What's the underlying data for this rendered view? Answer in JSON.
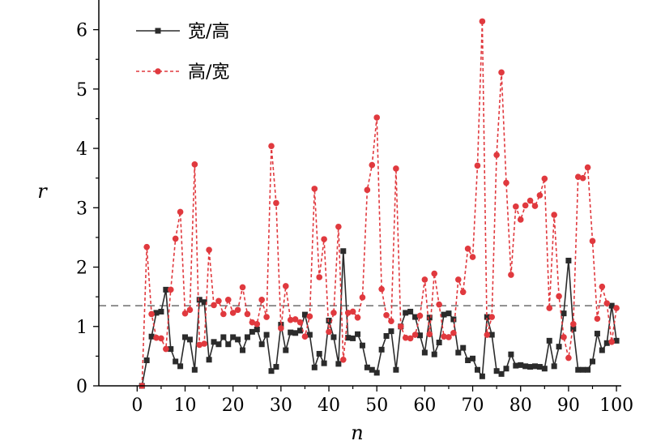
{
  "chart_data": {
    "type": "line",
    "title": "",
    "xlabel": "n",
    "ylabel": "r",
    "xlim": [
      -8,
      101
    ],
    "ylim": [
      0,
      6.5
    ],
    "x_ticks": [
      0,
      10,
      20,
      30,
      40,
      50,
      60,
      70,
      80,
      90,
      100
    ],
    "x_tick_labels": [
      "0",
      "10",
      "20",
      "30",
      "40",
      "50",
      "60",
      "70",
      "80",
      "90",
      "100"
    ],
    "y_ticks": [
      0,
      1,
      2,
      3,
      4,
      5,
      6
    ],
    "y_tick_labels": [
      "0",
      "1",
      "2",
      "3",
      "4",
      "5",
      "6"
    ],
    "grid": false,
    "legend_position": "top-left",
    "reference_line": {
      "y": 1.35,
      "color": "#777777",
      "style": "dashed"
    },
    "x": [
      1,
      2,
      3,
      4,
      5,
      6,
      7,
      8,
      9,
      10,
      11,
      12,
      13,
      14,
      15,
      16,
      17,
      18,
      19,
      20,
      21,
      22,
      23,
      24,
      25,
      26,
      27,
      28,
      29,
      30,
      31,
      32,
      33,
      34,
      35,
      36,
      37,
      38,
      39,
      40,
      41,
      42,
      43,
      44,
      45,
      46,
      47,
      48,
      49,
      50,
      51,
      52,
      53,
      54,
      55,
      56,
      57,
      58,
      59,
      60,
      61,
      62,
      63,
      64,
      65,
      66,
      67,
      68,
      69,
      70,
      71,
      72,
      73,
      74,
      75,
      76,
      77,
      78,
      79,
      80,
      81,
      82,
      83,
      84,
      85,
      86,
      87,
      88,
      89,
      90,
      91,
      92,
      93,
      94,
      95,
      96,
      97,
      98,
      99,
      100
    ],
    "series": [
      {
        "name": "宽/高",
        "color": "#2b2b2b",
        "line_style": "solid",
        "marker": "square",
        "values": [
          0.0,
          0.43,
          0.83,
          1.23,
          1.25,
          1.62,
          0.62,
          0.41,
          0.33,
          0.82,
          0.78,
          0.27,
          1.45,
          1.41,
          0.44,
          0.74,
          0.7,
          0.82,
          0.7,
          0.82,
          0.78,
          0.6,
          0.82,
          0.91,
          0.95,
          0.7,
          0.86,
          0.25,
          0.32,
          1.03,
          0.6,
          0.9,
          0.89,
          0.93,
          1.2,
          0.86,
          0.31,
          0.54,
          0.38,
          1.1,
          0.82,
          0.37,
          2.27,
          0.81,
          0.8,
          0.87,
          0.68,
          0.31,
          0.27,
          0.22,
          0.61,
          0.84,
          0.92,
          0.27,
          1.0,
          1.23,
          1.25,
          1.16,
          0.85,
          0.56,
          1.15,
          0.53,
          0.73,
          1.2,
          1.22,
          1.12,
          0.56,
          0.64,
          0.43,
          0.46,
          0.27,
          0.16,
          1.16,
          0.86,
          0.25,
          0.2,
          0.29,
          0.53,
          0.34,
          0.35,
          0.33,
          0.32,
          0.33,
          0.32,
          0.29,
          0.76,
          0.33,
          0.66,
          1.22,
          2.11,
          0.96,
          0.27,
          0.27,
          0.27,
          0.41,
          0.88,
          0.6,
          0.72,
          1.35,
          0.76
        ]
      },
      {
        "name": "高/宽",
        "color": "#e0393e",
        "line_style": "dashed",
        "marker": "circle",
        "values": [
          0.0,
          2.34,
          1.21,
          0.81,
          0.8,
          0.62,
          1.62,
          2.48,
          2.93,
          1.22,
          1.28,
          3.73,
          0.69,
          0.71,
          2.29,
          1.36,
          1.43,
          1.21,
          1.45,
          1.23,
          1.28,
          1.66,
          1.21,
          1.07,
          1.04,
          1.45,
          1.16,
          4.04,
          3.08,
          0.97,
          1.68,
          1.11,
          1.12,
          1.07,
          0.83,
          1.17,
          3.32,
          1.83,
          2.47,
          0.91,
          1.23,
          2.68,
          0.44,
          1.23,
          1.25,
          1.15,
          1.49,
          3.3,
          3.72,
          4.52,
          1.63,
          1.19,
          1.09,
          3.66,
          1.0,
          0.81,
          0.8,
          0.86,
          1.18,
          1.79,
          0.87,
          1.89,
          1.37,
          0.83,
          0.82,
          0.89,
          1.79,
          1.58,
          2.31,
          2.17,
          3.71,
          6.14,
          0.86,
          1.16,
          3.89,
          5.28,
          3.42,
          1.87,
          3.02,
          2.8,
          3.04,
          3.12,
          3.03,
          3.21,
          3.49,
          1.31,
          2.88,
          1.51,
          0.82,
          0.47,
          1.04,
          3.52,
          3.5,
          3.68,
          2.44,
          1.13,
          1.67,
          1.39,
          0.74,
          1.31
        ]
      }
    ]
  }
}
